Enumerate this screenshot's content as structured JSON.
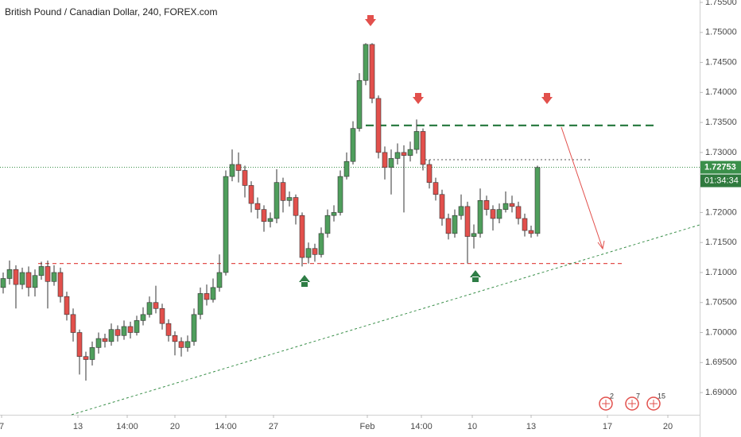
{
  "chart_data": {
    "type": "candlestick",
    "title": "British Pound / Canadian Dollar, 240, FOREX.com",
    "open": [
      1.7075,
      1.709,
      1.7105,
      1.708,
      1.71,
      1.7075,
      1.7095,
      1.711,
      1.7085,
      1.71,
      1.706,
      1.703,
      1.7,
      1.696,
      1.6955,
      1.6975,
      1.699,
      1.6985,
      1.7005,
      1.6995,
      1.701,
      1.7,
      1.702,
      1.703,
      1.705,
      1.704,
      1.7015,
      1.6995,
      1.6985,
      1.6975,
      1.6985,
      1.703,
      1.7065,
      1.7055,
      1.7075,
      1.71,
      1.726,
      1.728,
      1.727,
      1.7245,
      1.7215,
      1.7205,
      1.7185,
      1.719,
      1.725,
      1.722,
      1.7225,
      1.7195,
      1.7125,
      1.714,
      1.713,
      1.7165,
      1.7195,
      1.72,
      1.726,
      1.7285,
      1.734,
      1.742,
      1.748,
      1.739,
      1.73,
      1.7275,
      1.729,
      1.73,
      1.7295,
      1.7305,
      1.7335,
      1.728,
      1.725,
      1.723,
      1.719,
      1.7165,
      1.7195,
      1.721,
      1.716,
      1.7165,
      1.722,
      1.7205,
      1.719,
      1.7205,
      1.7215,
      1.721,
      1.719,
      1.717,
      1.7165
    ],
    "high": [
      1.71,
      1.712,
      1.7112,
      1.7108,
      1.711,
      1.7105,
      1.7118,
      1.712,
      1.7112,
      1.7108,
      1.7068,
      1.704,
      1.7005,
      1.6968,
      1.6985,
      1.7,
      1.6998,
      1.7015,
      1.7012,
      1.702,
      1.7018,
      1.7028,
      1.7042,
      1.706,
      1.7078,
      1.7048,
      1.7022,
      1.7002,
      1.6992,
      1.6995,
      1.704,
      1.7075,
      1.708,
      1.709,
      1.713,
      1.727,
      1.7305,
      1.73,
      1.7278,
      1.7252,
      1.7225,
      1.7212,
      1.72,
      1.7272,
      1.7258,
      1.7235,
      1.723,
      1.72,
      1.715,
      1.7148,
      1.7175,
      1.7205,
      1.7212,
      1.727,
      1.73,
      1.7352,
      1.7432,
      1.7482,
      1.7482,
      1.7395,
      1.731,
      1.7305,
      1.7315,
      1.7312,
      1.7318,
      1.7355,
      1.734,
      1.7288,
      1.7258,
      1.7238,
      1.7198,
      1.7205,
      1.723,
      1.7218,
      1.718,
      1.724,
      1.7228,
      1.7212,
      1.7215,
      1.7235,
      1.7228,
      1.7218,
      1.7198,
      1.7178,
      1.7278
    ],
    "low": [
      1.7065,
      1.708,
      1.704,
      1.7072,
      1.706,
      1.706,
      1.7088,
      1.704,
      1.7078,
      1.705,
      1.702,
      1.6985,
      1.693,
      1.692,
      1.6945,
      1.6965,
      1.6975,
      1.6978,
      1.6985,
      1.6988,
      1.699,
      1.6995,
      1.7012,
      1.7025,
      1.7032,
      1.7005,
      1.6985,
      1.6962,
      1.696,
      1.6968,
      1.6978,
      1.7022,
      1.7045,
      1.705,
      1.7068,
      1.7095,
      1.7252,
      1.725,
      1.7225,
      1.72,
      1.719,
      1.7168,
      1.7175,
      1.7182,
      1.72,
      1.721,
      1.718,
      1.711,
      1.7115,
      1.7118,
      1.7125,
      1.7158,
      1.7185,
      1.7195,
      1.7255,
      1.728,
      1.7335,
      1.7412,
      1.7382,
      1.729,
      1.7255,
      1.723,
      1.728,
      1.72,
      1.7285,
      1.7298,
      1.727,
      1.724,
      1.722,
      1.7178,
      1.7155,
      1.7158,
      1.7188,
      1.7115,
      1.714,
      1.7158,
      1.7195,
      1.717,
      1.7182,
      1.72,
      1.72,
      1.718,
      1.716,
      1.7158,
      1.716
    ],
    "close": [
      1.709,
      1.7105,
      1.708,
      1.71,
      1.7075,
      1.7095,
      1.711,
      1.7085,
      1.71,
      1.706,
      1.703,
      1.7,
      1.696,
      1.6955,
      1.6975,
      1.699,
      1.6985,
      1.7005,
      1.6995,
      1.701,
      1.7,
      1.702,
      1.703,
      1.705,
      1.704,
      1.7015,
      1.6995,
      1.6985,
      1.6975,
      1.6985,
      1.703,
      1.7065,
      1.7055,
      1.7075,
      1.71,
      1.726,
      1.728,
      1.727,
      1.7245,
      1.7215,
      1.7205,
      1.7185,
      1.719,
      1.725,
      1.722,
      1.7225,
      1.7195,
      1.7125,
      1.714,
      1.713,
      1.7165,
      1.7195,
      1.72,
      1.726,
      1.7285,
      1.734,
      1.742,
      1.748,
      1.739,
      1.73,
      1.7275,
      1.729,
      1.73,
      1.7295,
      1.7305,
      1.7335,
      1.728,
      1.725,
      1.723,
      1.719,
      1.7165,
      1.7195,
      1.721,
      1.716,
      1.7165,
      1.722,
      1.7205,
      1.719,
      1.7205,
      1.7215,
      1.721,
      1.719,
      1.717,
      1.7165,
      1.7275
    ],
    "up_color": "#4f9e5c",
    "down_color": "#e2504c",
    "xlim": [
      -0.5,
      109.5
    ],
    "xticks": [
      {
        "value": -0.25,
        "label": "7"
      },
      {
        "value": 11.75,
        "label": "13"
      },
      {
        "value": 19.5,
        "label": "14:00"
      },
      {
        "value": 27,
        "label": "20"
      },
      {
        "value": 35,
        "label": "14:00"
      },
      {
        "value": 42.5,
        "label": "27"
      },
      {
        "value": 57.25,
        "label": "Feb"
      },
      {
        "value": 65.75,
        "label": "14:00"
      },
      {
        "value": 73.75,
        "label": "10"
      },
      {
        "value": 83,
        "label": "13"
      },
      {
        "value": 95,
        "label": "17"
      },
      {
        "value": 104.5,
        "label": "20"
      }
    ],
    "ylim": [
      1.6863,
      1.7554
    ],
    "yticks": [
      {
        "value": 1.69,
        "label": "1.69000"
      },
      {
        "value": 1.695,
        "label": "1.69500"
      },
      {
        "value": 1.7,
        "label": "1.70000"
      },
      {
        "value": 1.705,
        "label": "1.70500"
      },
      {
        "value": 1.71,
        "label": "1.71000"
      },
      {
        "value": 1.715,
        "label": "1.71500"
      },
      {
        "value": 1.72,
        "label": "1.72000"
      },
      {
        "value": 1.73,
        "label": "1.73000"
      },
      {
        "value": 1.735,
        "label": "1.73500"
      },
      {
        "value": 1.74,
        "label": "1.74000"
      },
      {
        "value": 1.745,
        "label": "1.74500"
      },
      {
        "value": 1.75,
        "label": "1.75000"
      },
      {
        "value": 1.755,
        "label": "1.75500"
      }
    ],
    "last_price": {
      "value": 1.72753,
      "label": "1.72753"
    },
    "countdown": "01:34:34",
    "resistance": 1.7345,
    "support": 1.7115,
    "target": 1.7288,
    "events": [
      "2",
      "7",
      "15"
    ]
  }
}
